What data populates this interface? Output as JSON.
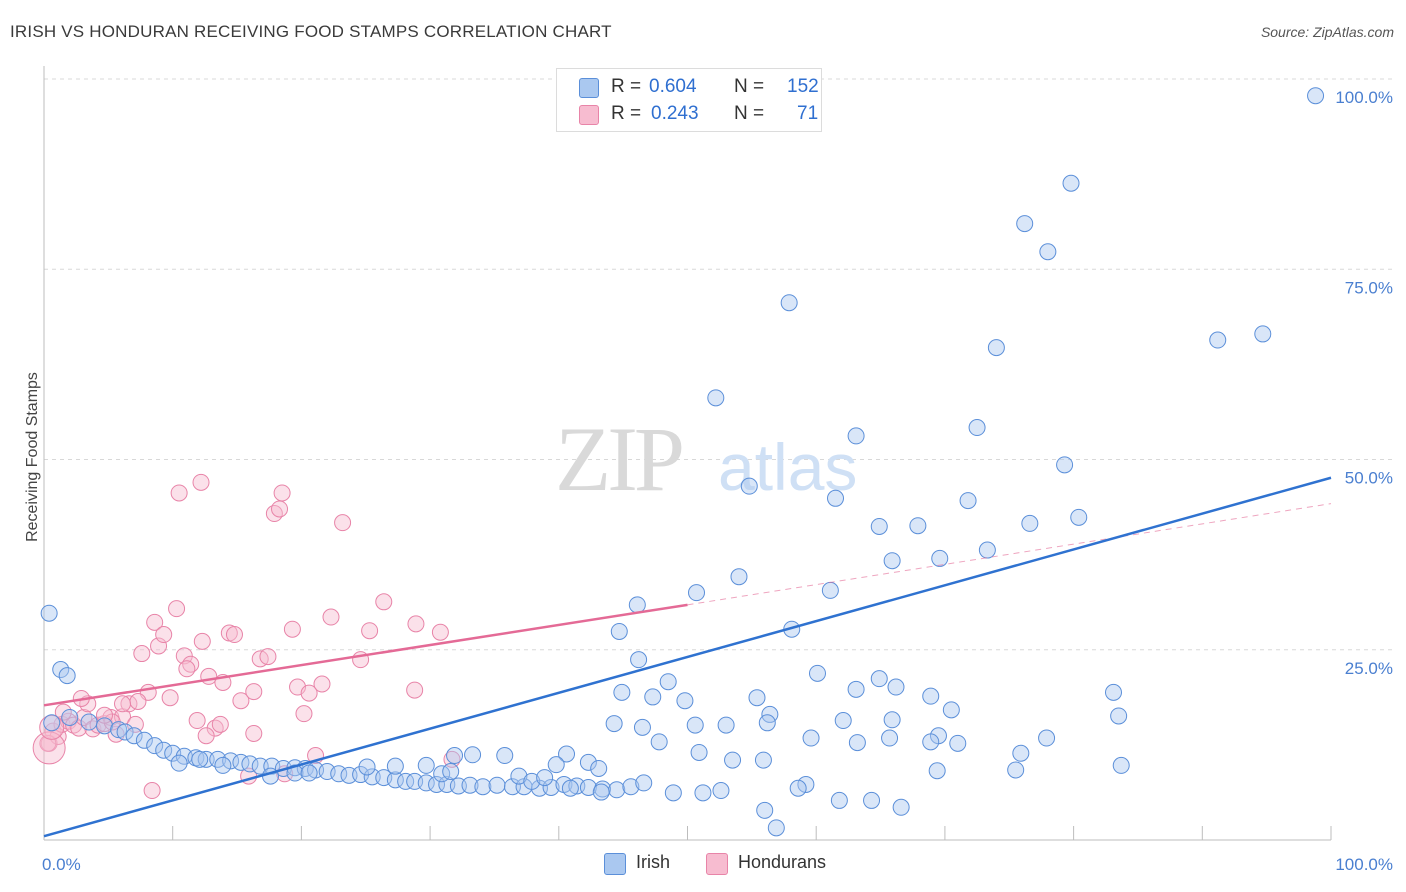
{
  "title": "IRISH VS HONDURAN RECEIVING FOOD STAMPS CORRELATION CHART",
  "source": "Source: ZipAtlas.com",
  "watermark": {
    "zip": "ZIP",
    "atlas": "atlas"
  },
  "legend": {
    "r_label": "R =",
    "n_label": "N =",
    "irish": {
      "r": "0.604",
      "n": "152"
    },
    "hondurans": {
      "r": "0.243",
      "n": "71"
    }
  },
  "colors": {
    "irish_fill": "#aac8f0",
    "irish_stroke": "#5b8fd9",
    "irish_line": "#2f72d0",
    "hond_fill": "#f7bcd0",
    "hond_stroke": "#e884a8",
    "hond_line": "#e46a96",
    "axis_label": "#4a7fd0",
    "grid": "#d8d8d8"
  },
  "chart_data": {
    "type": "scatter",
    "title": "IRISH VS HONDURAN RECEIVING FOOD STAMPS CORRELATION CHART",
    "xlabel": "",
    "ylabel": "Receiving Food Stamps",
    "xlim": [
      0,
      100
    ],
    "ylim": [
      0,
      100
    ],
    "x_tick_labels": [
      "0.0%",
      "100.0%"
    ],
    "y_tick_labels": [
      "25.0%",
      "50.0%",
      "75.0%",
      "100.0%"
    ],
    "y_ticks": [
      25,
      50,
      75,
      100
    ],
    "x_minor_ticks": [
      0,
      10,
      20,
      30,
      40,
      50,
      60,
      70,
      80,
      90,
      100
    ],
    "series": [
      {
        "name": "Irish",
        "r": 0.604,
        "n": 152,
        "trend": {
          "x": [
            0,
            100
          ],
          "y": [
            0.5,
            47.6
          ],
          "dashed": false
        },
        "points": [
          [
            98.8,
            97.8
          ],
          [
            79.8,
            86.3
          ],
          [
            76.2,
            81
          ],
          [
            78,
            77.3
          ],
          [
            57.9,
            70.6
          ],
          [
            74,
            64.7
          ],
          [
            91.2,
            65.7
          ],
          [
            94.7,
            66.5
          ],
          [
            52.2,
            58.1
          ],
          [
            72.5,
            54.2
          ],
          [
            63.1,
            53.1
          ],
          [
            79.3,
            49.3
          ],
          [
            54.8,
            46.5
          ],
          [
            71.8,
            44.6
          ],
          [
            61.5,
            44.9
          ],
          [
            80.4,
            42.4
          ],
          [
            76.6,
            41.6
          ],
          [
            67.9,
            41.3
          ],
          [
            64.9,
            41.2
          ],
          [
            73.3,
            38.1
          ],
          [
            69.6,
            37
          ],
          [
            65.9,
            36.7
          ],
          [
            54,
            34.6
          ],
          [
            50.7,
            32.5
          ],
          [
            61.1,
            32.8
          ],
          [
            58.1,
            27.7
          ],
          [
            44.7,
            27.4
          ],
          [
            0.4,
            29.8
          ],
          [
            46.2,
            23.7
          ],
          [
            1.3,
            22.4
          ],
          [
            1.8,
            21.6
          ],
          [
            48.5,
            20.8
          ],
          [
            44.9,
            19.4
          ],
          [
            47.3,
            18.8
          ],
          [
            49.8,
            18.3
          ],
          [
            55.4,
            18.7
          ],
          [
            56.4,
            16.5
          ],
          [
            65.9,
            15.8
          ],
          [
            62.1,
            15.7
          ],
          [
            69.5,
            13.7
          ],
          [
            83.5,
            16.3
          ],
          [
            56.2,
            15.4
          ],
          [
            53,
            15.1
          ],
          [
            50.6,
            15.1
          ],
          [
            46.5,
            14.8
          ],
          [
            44.3,
            15.3
          ],
          [
            59.6,
            13.4
          ],
          [
            63.2,
            12.8
          ],
          [
            71,
            12.7
          ],
          [
            75.9,
            11.4
          ],
          [
            68.9,
            12.9
          ],
          [
            65.7,
            13.4
          ],
          [
            47.8,
            12.9
          ],
          [
            50.9,
            11.5
          ],
          [
            40.6,
            11.3
          ],
          [
            42.3,
            10.2
          ],
          [
            75.5,
            9.2
          ],
          [
            55.9,
            10.5
          ],
          [
            53.5,
            10.5
          ],
          [
            43.1,
            9.4
          ],
          [
            39.8,
            9.9
          ],
          [
            35.8,
            11.1
          ],
          [
            33.3,
            11.2
          ],
          [
            31.9,
            11.1
          ],
          [
            0.6,
            15.4
          ],
          [
            2,
            16.1
          ],
          [
            3.5,
            15.5
          ],
          [
            4.7,
            15
          ],
          [
            5.8,
            14.5
          ],
          [
            6.3,
            14.2
          ],
          [
            7,
            13.7
          ],
          [
            7.8,
            13.1
          ],
          [
            8.6,
            12.4
          ],
          [
            9.3,
            11.8
          ],
          [
            10,
            11.4
          ],
          [
            10.9,
            11
          ],
          [
            11.8,
            10.8
          ],
          [
            12.6,
            10.6
          ],
          [
            13.5,
            10.6
          ],
          [
            14.5,
            10.4
          ],
          [
            15.3,
            10.2
          ],
          [
            16,
            10
          ],
          [
            16.8,
            9.7
          ],
          [
            17.7,
            9.7
          ],
          [
            18.6,
            9.4
          ],
          [
            19.5,
            9.5
          ],
          [
            20.3,
            9.4
          ],
          [
            21.1,
            9.2
          ],
          [
            22,
            9
          ],
          [
            22.9,
            8.7
          ],
          [
            23.7,
            8.5
          ],
          [
            24.6,
            8.6
          ],
          [
            25.5,
            8.3
          ],
          [
            26.4,
            8.2
          ],
          [
            27.3,
            7.9
          ],
          [
            28.1,
            7.7
          ],
          [
            28.8,
            7.7
          ],
          [
            29.7,
            7.5
          ],
          [
            30.5,
            7.3
          ],
          [
            31.3,
            7.3
          ],
          [
            32.2,
            7.1
          ],
          [
            33.1,
            7.2
          ],
          [
            34.1,
            7
          ],
          [
            35.2,
            7.2
          ],
          [
            36.4,
            7
          ],
          [
            37.3,
            7
          ],
          [
            38.5,
            6.8
          ],
          [
            39.4,
            6.9
          ],
          [
            40.4,
            7.3
          ],
          [
            41.4,
            7.1
          ],
          [
            42.3,
            6.9
          ],
          [
            43.4,
            6.7
          ],
          [
            44.5,
            6.6
          ],
          [
            45.6,
            7
          ],
          [
            36.9,
            8.4
          ],
          [
            37.9,
            7.7
          ],
          [
            38.9,
            8.2
          ],
          [
            25.1,
            9.6
          ],
          [
            27.3,
            9.7
          ],
          [
            29.7,
            9.8
          ],
          [
            30.9,
            8.7
          ],
          [
            31.6,
            9
          ],
          [
            17.6,
            8.4
          ],
          [
            19.5,
            8.8
          ],
          [
            20.6,
            8.8
          ],
          [
            13.9,
            9.8
          ],
          [
            12.1,
            10.6
          ],
          [
            10.5,
            10.1
          ],
          [
            46.6,
            7.5
          ],
          [
            48.9,
            6.2
          ],
          [
            51.2,
            6.2
          ],
          [
            52.6,
            6.5
          ],
          [
            43.3,
            6.3
          ],
          [
            40.9,
            6.8
          ],
          [
            59.2,
            7.3
          ],
          [
            58.6,
            6.8
          ],
          [
            61.8,
            5.2
          ],
          [
            64.3,
            5.2
          ],
          [
            56,
            3.9
          ],
          [
            56.9,
            1.6
          ],
          [
            66.6,
            4.3
          ],
          [
            69.4,
            9.1
          ],
          [
            77.9,
            13.4
          ],
          [
            83.7,
            9.8
          ],
          [
            83.1,
            19.4
          ],
          [
            68.9,
            18.9
          ],
          [
            70.5,
            17.1
          ],
          [
            60.1,
            21.9
          ],
          [
            63.1,
            19.8
          ],
          [
            64.9,
            21.2
          ],
          [
            66.2,
            20.1
          ],
          [
            46.1,
            30.9
          ]
        ]
      },
      {
        "name": "Hondurans",
        "r": 0.243,
        "n": 71,
        "trend": {
          "x": [
            0,
            50
          ],
          "y": [
            17.7,
            30.9
          ],
          "dashed": false
        },
        "trend_ext": {
          "x": [
            50,
            100
          ],
          "y": [
            30.9,
            44.2
          ],
          "dashed": true
        },
        "points": [
          [
            0.4,
            12.7
          ],
          [
            0.7,
            14.3
          ],
          [
            1.1,
            13.6
          ],
          [
            1.4,
            15.2
          ],
          [
            1.9,
            15.6
          ],
          [
            2.3,
            15.1
          ],
          [
            2.7,
            14.7
          ],
          [
            3.1,
            16.1
          ],
          [
            3.4,
            17.9
          ],
          [
            3.8,
            14.6
          ],
          [
            4.2,
            15.1
          ],
          [
            4.7,
            15.3
          ],
          [
            5.2,
            16.1
          ],
          [
            5.6,
            13.9
          ],
          [
            6.1,
            16.2
          ],
          [
            6.6,
            17.9
          ],
          [
            7.1,
            15.2
          ],
          [
            7.6,
            24.5
          ],
          [
            8.1,
            19.4
          ],
          [
            8.6,
            28.6
          ],
          [
            8.9,
            25.5
          ],
          [
            9.3,
            27
          ],
          [
            9.8,
            18.7
          ],
          [
            10.3,
            30.4
          ],
          [
            10.9,
            24.2
          ],
          [
            11.4,
            23.1
          ],
          [
            11.9,
            15.7
          ],
          [
            12.3,
            26.1
          ],
          [
            12.8,
            21.5
          ],
          [
            13.3,
            14.7
          ],
          [
            13.9,
            20.7
          ],
          [
            14.4,
            27.2
          ],
          [
            14.8,
            27
          ],
          [
            15.3,
            18.3
          ],
          [
            15.9,
            8.4
          ],
          [
            16.3,
            14
          ],
          [
            16.8,
            23.8
          ],
          [
            17.4,
            24.1
          ],
          [
            17.9,
            42.9
          ],
          [
            18.3,
            43.5
          ],
          [
            18.7,
            8.7
          ],
          [
            19.3,
            27.7
          ],
          [
            19.7,
            20.1
          ],
          [
            20.2,
            16.6
          ],
          [
            20.6,
            19.3
          ],
          [
            21.1,
            11.1
          ],
          [
            21.6,
            20.5
          ],
          [
            22.3,
            29.3
          ],
          [
            23.2,
            41.7
          ],
          [
            24.6,
            23.7
          ],
          [
            25.3,
            27.5
          ],
          [
            26.4,
            31.3
          ],
          [
            28.8,
            19.7
          ],
          [
            28.9,
            28.4
          ],
          [
            30.8,
            27.3
          ],
          [
            31.7,
            10.6
          ],
          [
            10.5,
            45.6
          ],
          [
            12.2,
            47
          ],
          [
            18.5,
            45.6
          ],
          [
            8.4,
            6.5
          ],
          [
            7.3,
            18.2
          ],
          [
            6.1,
            17.9
          ],
          [
            5.3,
            15.5
          ],
          [
            4.7,
            16.4
          ],
          [
            0.3,
            12.7
          ],
          [
            1.5,
            16.8
          ],
          [
            2.9,
            18.6
          ],
          [
            12.6,
            13.7
          ],
          [
            16.3,
            19.5
          ],
          [
            11.1,
            22.5
          ],
          [
            13.7,
            15.2
          ]
        ]
      }
    ]
  },
  "bottom_legend": {
    "irish": "Irish",
    "hondurans": "Hondurans"
  }
}
